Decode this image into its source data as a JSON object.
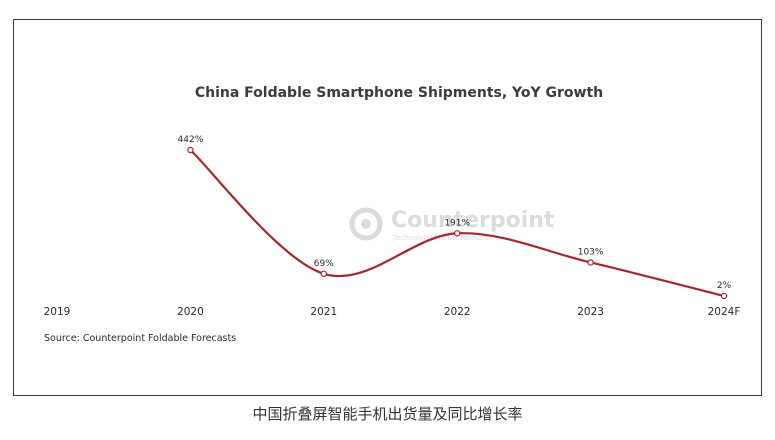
{
  "caption": "中国折叠屏智能手机出货量及同比增长率",
  "watermark": {
    "brand": "Counterpoint",
    "sub": "Technology Market Research"
  },
  "colors": {
    "line": "#a3282a",
    "text": "#2b2b2b",
    "title": "#3b3b3b"
  },
  "chart_data": {
    "type": "line",
    "title": "China Foldable Smartphone Shipments, YoY Growth",
    "categories": [
      "2019",
      "2020",
      "2021",
      "2022",
      "2023",
      "2024F"
    ],
    "series": [
      {
        "values": [
          null,
          442,
          69,
          191,
          103,
          2
        ],
        "labels": [
          "",
          "442%",
          "69%",
          "191%",
          "103%",
          "2%"
        ]
      }
    ],
    "smooth": true,
    "source": "Source: Counterpoint Foldable Forecasts",
    "grid": false,
    "legend": "none"
  }
}
